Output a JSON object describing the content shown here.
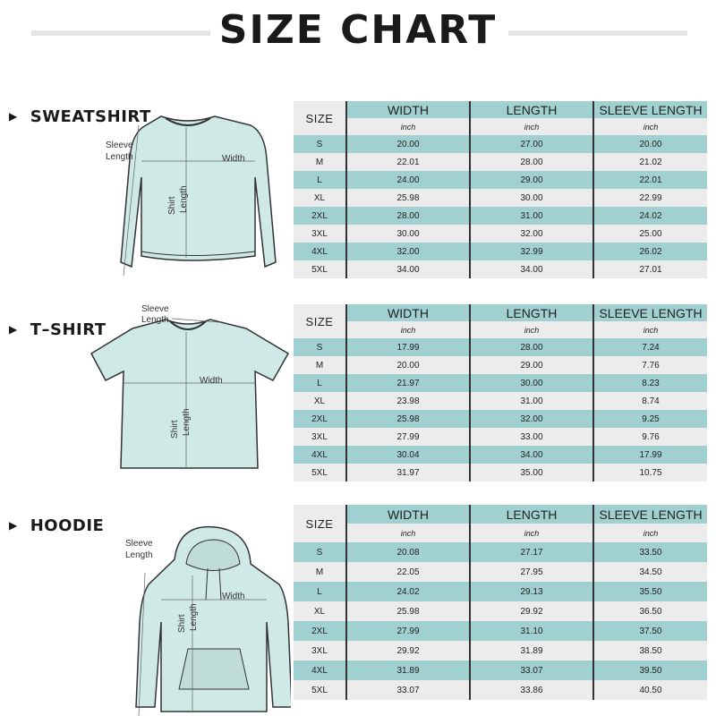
{
  "title": "SIZE CHART",
  "colors": {
    "teal": "#a0d0d0",
    "gray": "#ececec",
    "garment": "#cfe9e6"
  },
  "columns": {
    "size": "SIZE",
    "width": "WIDTH",
    "length": "LENGTH",
    "sleeve": "SLEEVE LENGTH",
    "unit": "inch"
  },
  "diagram_labels": {
    "sleeve": "Sleeve",
    "length_word": "Length",
    "width": "Width",
    "shirt": "Shirt"
  },
  "sections": [
    {
      "name": "SWEATSHIRT",
      "rows": [
        [
          "S",
          "20.00",
          "27.00",
          "20.00"
        ],
        [
          "M",
          "22.01",
          "28.00",
          "21.02"
        ],
        [
          "L",
          "24.00",
          "29.00",
          "22.01"
        ],
        [
          "XL",
          "25.98",
          "30.00",
          "22.99"
        ],
        [
          "2XL",
          "28.00",
          "31.00",
          "24.02"
        ],
        [
          "3XL",
          "30.00",
          "32.00",
          "25.00"
        ],
        [
          "4XL",
          "32.00",
          "32.99",
          "26.02"
        ],
        [
          "5XL",
          "34.00",
          "34.00",
          "27.01"
        ]
      ]
    },
    {
      "name": "T–SHIRT",
      "rows": [
        [
          "S",
          "17.99",
          "28.00",
          "7.24"
        ],
        [
          "M",
          "20.00",
          "29.00",
          "7.76"
        ],
        [
          "L",
          "21.97",
          "30.00",
          "8.23"
        ],
        [
          "XL",
          "23.98",
          "31.00",
          "8.74"
        ],
        [
          "2XL",
          "25.98",
          "32.00",
          "9.25"
        ],
        [
          "3XL",
          "27.99",
          "33.00",
          "9.76"
        ],
        [
          "4XL",
          "30.04",
          "34.00",
          "17.99"
        ],
        [
          "5XL",
          "31.97",
          "35.00",
          "10.75"
        ]
      ]
    },
    {
      "name": "HOODIE",
      "rows": [
        [
          "S",
          "20.08",
          "27.17",
          "33.50"
        ],
        [
          "M",
          "22.05",
          "27.95",
          "34.50"
        ],
        [
          "L",
          "24.02",
          "29.13",
          "35.50"
        ],
        [
          "XL",
          "25.98",
          "29.92",
          "36.50"
        ],
        [
          "2XL",
          "27.99",
          "31.10",
          "37.50"
        ],
        [
          "3XL",
          "29.92",
          "31.89",
          "38.50"
        ],
        [
          "4XL",
          "31.89",
          "33.07",
          "39.50"
        ],
        [
          "5XL",
          "33.07",
          "33.86",
          "40.50"
        ]
      ]
    }
  ]
}
